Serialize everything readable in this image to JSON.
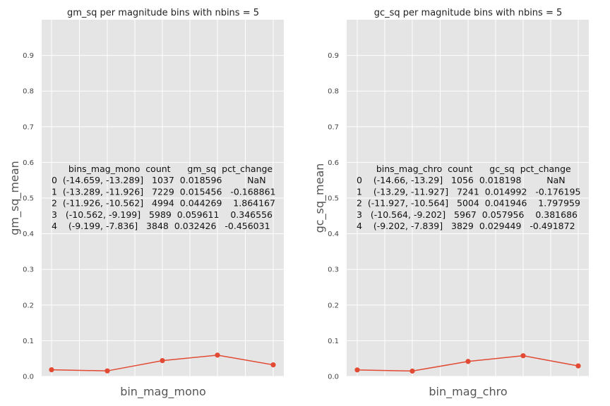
{
  "chart_data": [
    {
      "type": "line",
      "title": "gm_sq per magnitude bins with nbins = 5",
      "xlabel": "bin_mag_mono",
      "ylabel": "gm_sq_mean",
      "ylim": [
        0,
        1.0
      ],
      "yticks": [
        "0.0",
        "0.1",
        "0.2",
        "0.3",
        "0.4",
        "0.5",
        "0.6",
        "0.7",
        "0.8",
        "0.9"
      ],
      "grid": true,
      "x": [
        0,
        1,
        2,
        3,
        4
      ],
      "values": [
        0.018596,
        0.015456,
        0.044269,
        0.059611,
        0.032426
      ],
      "color": "#e24a33",
      "table_lines": [
        "      bins_mag_mono  count      gm_sq  pct_change",
        "0  (-14.659, -13.289]   1037  0.018596         NaN",
        "1  (-13.289, -11.926]   7229  0.015456   -0.168861",
        "2  (-11.926, -10.562]   4994  0.044269    1.864167",
        "3   (-10.562, -9.199]   5989  0.059611    0.346556",
        "4    (-9.199, -7.836]   3848  0.032426   -0.456031"
      ]
    },
    {
      "type": "line",
      "title": "gc_sq per magnitude bins with nbins = 5",
      "xlabel": "bin_mag_chro",
      "ylabel": "gc_sq_mean",
      "ylim": [
        0,
        1.0
      ],
      "yticks": [
        "0.0",
        "0.1",
        "0.2",
        "0.3",
        "0.4",
        "0.5",
        "0.6",
        "0.7",
        "0.8",
        "0.9"
      ],
      "grid": true,
      "x": [
        0,
        1,
        2,
        3,
        4
      ],
      "values": [
        0.018198,
        0.014992,
        0.041946,
        0.057956,
        0.029449
      ],
      "color": "#e24a33",
      "table_lines": [
        "       bins_mag_chro  count      gc_sq  pct_change",
        "0    (-14.66, -13.29]   1056  0.018198         NaN",
        "1    (-13.29, -11.927]   7241  0.014992   -0.176195",
        "2  (-11.927, -10.564]   5004  0.041946    1.797959",
        "3   (-10.564, -9.202]   5967  0.057956    0.381686",
        "4    (-9.202, -7.839]   3829  0.029449   -0.491872"
      ]
    }
  ]
}
